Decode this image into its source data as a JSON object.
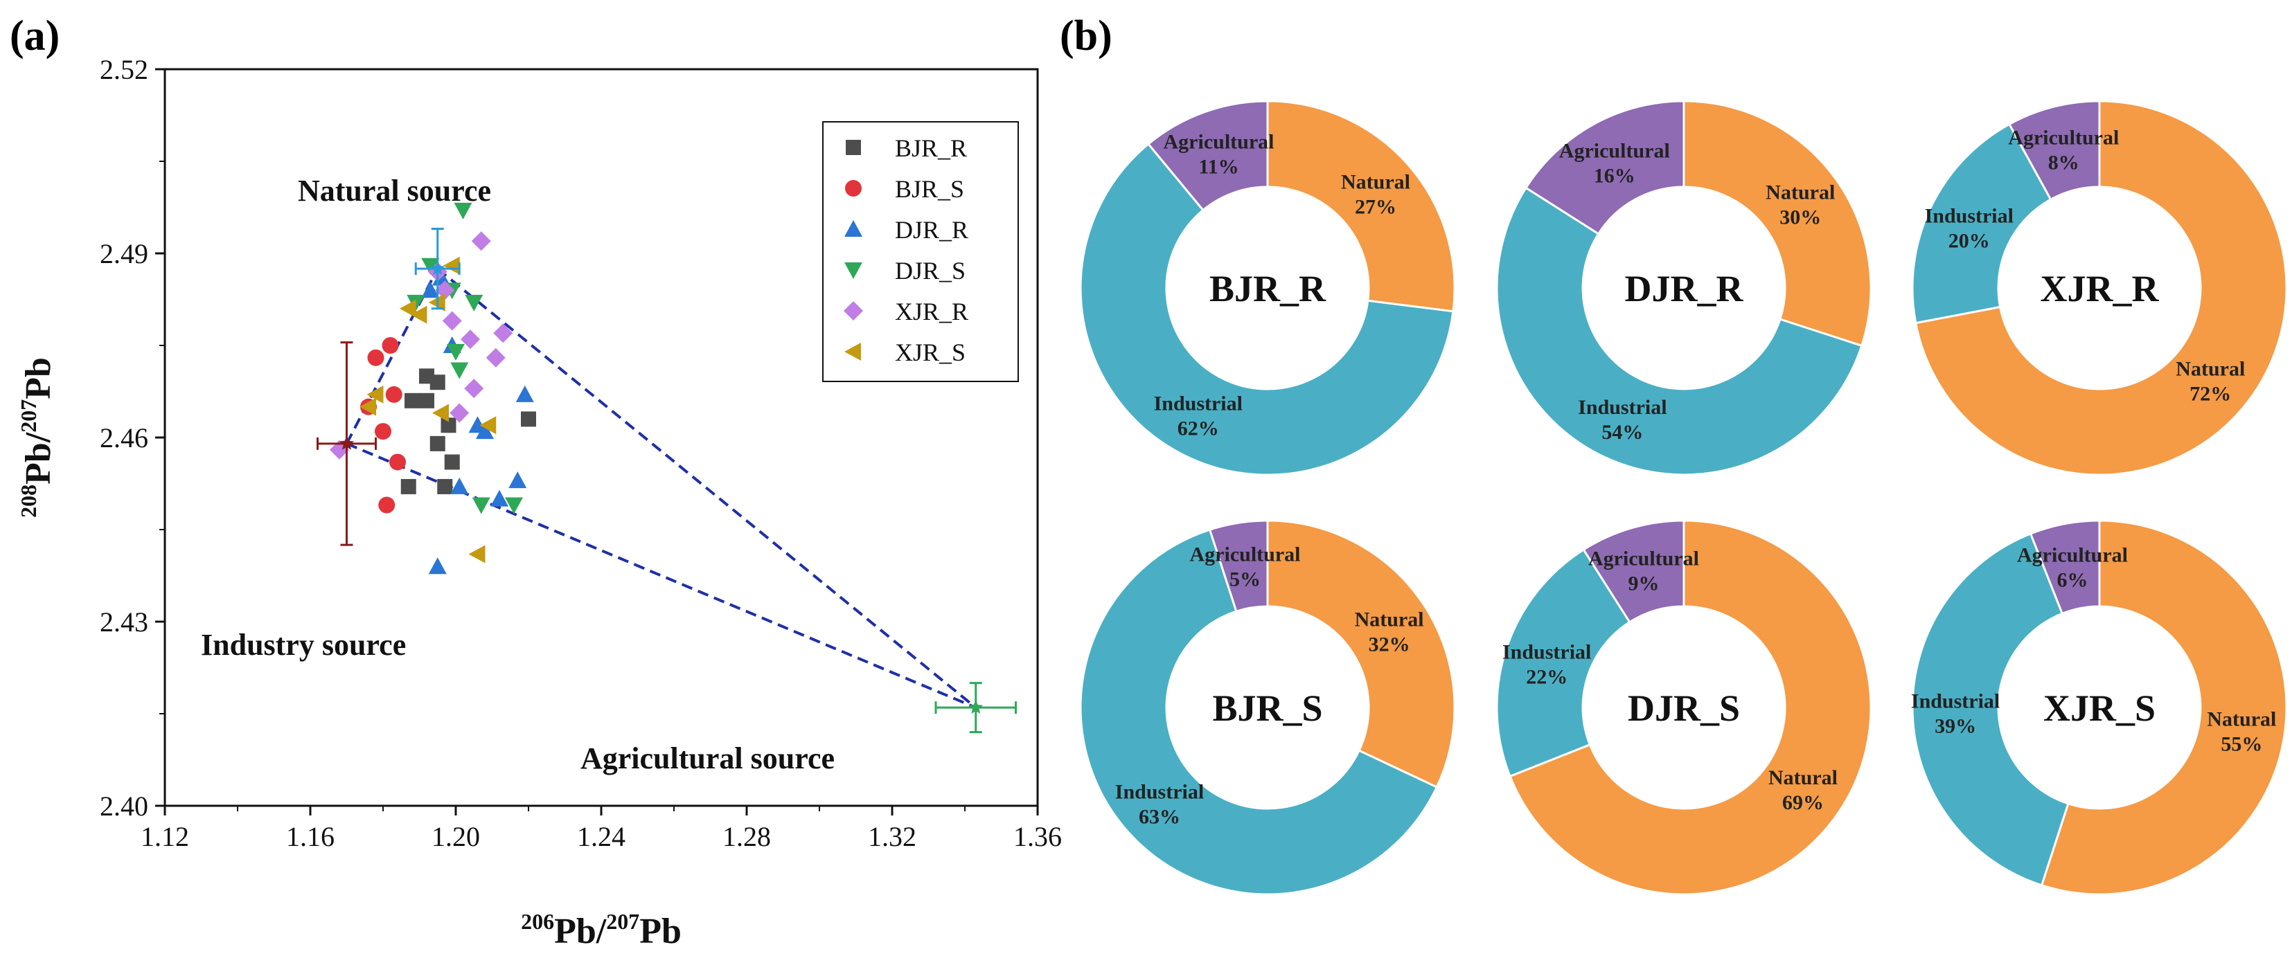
{
  "panel_a_label": "(a)",
  "panel_b_label": "(b)",
  "colors": {
    "natural": "#F59A45",
    "industrial": "#4AAFC4",
    "agricultural": "#8E6BB3",
    "BJR_R": "#4d4d4d",
    "BJR_S": "#e3343b",
    "DJR_R": "#2a75d6",
    "DJR_S": "#2ea857",
    "XJR_R": "#c07de6",
    "XJR_S": "#c49a10",
    "mixing_line": "#1f2fa8",
    "industry_end": "#8b1a1a",
    "natural_end": "#2a9ad6",
    "agri_end": "#2ea857"
  },
  "chart_data": [
    {
      "type": "scatter",
      "xlabel_sup": "206",
      "xlabel_base": "Pb/",
      "xlabel_sup2": "207",
      "xlabel_end": "Pb",
      "ylabel_sup": "208",
      "ylabel_base": "Pb/",
      "ylabel_sup2": "207",
      "ylabel_end": "Pb",
      "xlim": [
        1.12,
        1.36
      ],
      "ylim": [
        2.4,
        2.52
      ],
      "xticks": [
        "1.12",
        "1.16",
        "1.20",
        "1.24",
        "1.28",
        "1.32",
        "1.36"
      ],
      "yticks": [
        "2.40",
        "2.43",
        "2.46",
        "2.49",
        "2.52"
      ],
      "annotations": {
        "natural": "Natural source",
        "industry": "Industry source",
        "agricultural": "Agricultural source"
      },
      "legend": [
        "BJR_R",
        "BJR_S",
        "DJR_R",
        "DJR_S",
        "XJR_R",
        "XJR_S"
      ],
      "series": [
        {
          "name": "BJR_R",
          "marker": "square",
          "points": [
            [
              1.187,
              2.452
            ],
            [
              1.192,
              2.47
            ],
            [
              1.195,
              2.459
            ],
            [
              1.197,
              2.452
            ],
            [
              1.199,
              2.456
            ],
            [
              1.192,
              2.466
            ],
            [
              1.195,
              2.469
            ],
            [
              1.198,
              2.462
            ],
            [
              1.188,
              2.466
            ],
            [
              1.22,
              2.463
            ]
          ]
        },
        {
          "name": "BJR_S",
          "marker": "circle",
          "points": [
            [
              1.178,
              2.473
            ],
            [
              1.182,
              2.475
            ],
            [
              1.183,
              2.467
            ],
            [
              1.18,
              2.461
            ],
            [
              1.181,
              2.449
            ],
            [
              1.184,
              2.456
            ],
            [
              1.176,
              2.465
            ]
          ]
        },
        {
          "name": "DJR_R",
          "marker": "triangle-up",
          "points": [
            [
              1.193,
              2.484
            ],
            [
              1.196,
              2.486
            ],
            [
              1.199,
              2.475
            ],
            [
              1.201,
              2.452
            ],
            [
              1.206,
              2.462
            ],
            [
              1.208,
              2.461
            ],
            [
              1.217,
              2.453
            ],
            [
              1.219,
              2.467
            ],
            [
              1.195,
              2.439
            ],
            [
              1.212,
              2.45
            ]
          ]
        },
        {
          "name": "DJR_S",
          "marker": "triangle-down",
          "points": [
            [
              1.202,
              2.497
            ],
            [
              1.205,
              2.482
            ],
            [
              1.199,
              2.484
            ],
            [
              1.201,
              2.471
            ],
            [
              1.2,
              2.474
            ],
            [
              1.207,
              2.449
            ],
            [
              1.216,
              2.449
            ],
            [
              1.193,
              2.488
            ],
            [
              1.189,
              2.482
            ]
          ]
        },
        {
          "name": "XJR_R",
          "marker": "diamond",
          "points": [
            [
              1.207,
              2.492
            ],
            [
              1.195,
              2.487
            ],
            [
              1.199,
              2.479
            ],
            [
              1.204,
              2.476
            ],
            [
              1.211,
              2.473
            ],
            [
              1.213,
              2.477
            ],
            [
              1.201,
              2.464
            ],
            [
              1.205,
              2.468
            ],
            [
              1.197,
              2.484
            ],
            [
              1.168,
              2.458
            ]
          ]
        },
        {
          "name": "XJR_S",
          "marker": "triangle-left",
          "points": [
            [
              1.199,
              2.488
            ],
            [
              1.187,
              2.481
            ],
            [
              1.19,
              2.48
            ],
            [
              1.195,
              2.482
            ],
            [
              1.196,
              2.464
            ],
            [
              1.209,
              2.462
            ],
            [
              1.206,
              2.441
            ],
            [
              1.178,
              2.467
            ],
            [
              1.176,
              2.465
            ]
          ]
        }
      ],
      "endmembers": [
        {
          "name": "Industry",
          "x": 1.17,
          "y": 2.459,
          "xerr": 0.008,
          "yerr": 0.0165
        },
        {
          "name": "Natural",
          "x": 1.195,
          "y": 2.4875,
          "xerr": 0.006,
          "yerr": 0.0065
        },
        {
          "name": "Agricultural",
          "x": 1.343,
          "y": 2.416,
          "xerr": 0.011,
          "yerr": 0.004
        }
      ],
      "mixing_lines": [
        [
          [
            1.17,
            2.459
          ],
          [
            1.195,
            2.4875
          ]
        ],
        [
          [
            1.195,
            2.4875
          ],
          [
            1.343,
            2.416
          ]
        ],
        [
          [
            1.17,
            2.459
          ],
          [
            1.343,
            2.416
          ]
        ]
      ]
    },
    {
      "type": "pie",
      "donuts": [
        {
          "name": "BJR_R",
          "natural": 27,
          "industrial": 62,
          "agricultural": 11
        },
        {
          "name": "DJR_R",
          "natural": 30,
          "industrial": 54,
          "agricultural": 16
        },
        {
          "name": "XJR_R",
          "natural": 72,
          "industrial": 20,
          "agricultural": 8
        },
        {
          "name": "BJR_S",
          "natural": 32,
          "industrial": 63,
          "agricultural": 5
        },
        {
          "name": "DJR_S",
          "natural": 69,
          "industrial": 22,
          "agricultural": 9
        },
        {
          "name": "XJR_S",
          "natural": 55,
          "industrial": 39,
          "agricultural": 6
        }
      ],
      "labels": {
        "natural": "Natural",
        "industrial": "Industrial",
        "agricultural": "Agricultural"
      }
    }
  ]
}
